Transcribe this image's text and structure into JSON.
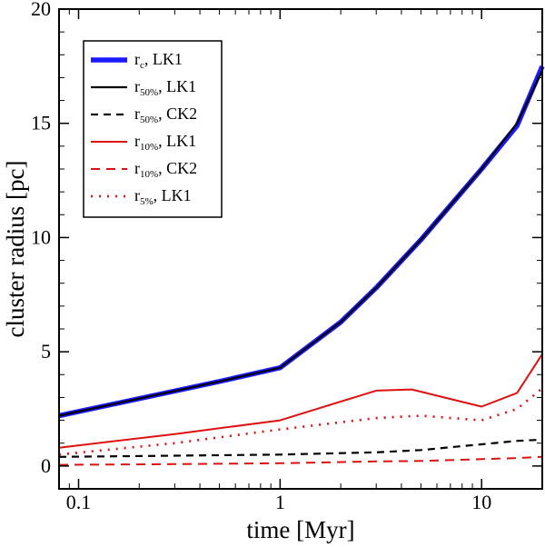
{
  "chart_data": {
    "type": "line",
    "xlabel": "time [Myr]",
    "ylabel": "cluster radius [pc]",
    "xscale": "log",
    "xlim": [
      0.08,
      20
    ],
    "ylim": [
      -1,
      20
    ],
    "xticks": [
      {
        "value": 0.1,
        "label": "0.1"
      },
      {
        "value": 1,
        "label": "1"
      },
      {
        "value": 10,
        "label": "10"
      }
    ],
    "yticks": [
      {
        "value": 0,
        "label": "0"
      },
      {
        "value": 5,
        "label": "5"
      },
      {
        "value": 10,
        "label": "10"
      },
      {
        "value": 15,
        "label": "15"
      },
      {
        "value": 20,
        "label": "20"
      }
    ],
    "legend_position": "top-left",
    "series": [
      {
        "name": "r",
        "sub": "c",
        "suffix": ",    LK1",
        "color": "#1a1aff",
        "width": 5.5,
        "dash": "",
        "x": [
          0.08,
          0.2,
          0.5,
          1.0,
          2.0,
          3.0,
          5.0,
          8.0,
          10.0,
          15.0,
          20.0
        ],
        "y": [
          2.2,
          2.95,
          3.7,
          4.3,
          6.3,
          7.8,
          9.9,
          12.0,
          13.0,
          14.9,
          17.5
        ]
      },
      {
        "name": "r",
        "sub": "50%",
        "suffix": ", LK1",
        "color": "#000000",
        "width": 2.2,
        "dash": "",
        "x": [
          0.08,
          0.2,
          0.5,
          1.0,
          2.0,
          3.0,
          5.0,
          8.0,
          10.0,
          15.0,
          20.0
        ],
        "y": [
          2.2,
          2.95,
          3.7,
          4.3,
          6.3,
          7.8,
          9.9,
          12.0,
          13.0,
          15.0,
          17.3
        ]
      },
      {
        "name": "r",
        "sub": "50%",
        "suffix": ", CK2",
        "color": "#000000",
        "width": 2.2,
        "dash": "8,6",
        "x": [
          0.08,
          0.3,
          1.0,
          3.0,
          5.0,
          10.0,
          15.0,
          20.0
        ],
        "y": [
          0.4,
          0.45,
          0.5,
          0.6,
          0.7,
          0.95,
          1.1,
          1.15
        ]
      },
      {
        "name": "r",
        "sub": "10%",
        "suffix": ", LK1",
        "color": "#dd1111",
        "width": 2.0,
        "dash": "",
        "x": [
          0.08,
          0.3,
          1.0,
          3.0,
          4.5,
          10.0,
          15.0,
          20.0
        ],
        "y": [
          0.8,
          1.4,
          2.0,
          3.3,
          3.35,
          2.6,
          3.2,
          4.9
        ]
      },
      {
        "name": "r",
        "sub": "10%",
        "suffix": ", CK2",
        "color": "#dd1111",
        "width": 2.0,
        "dash": "10,7",
        "x": [
          0.08,
          0.3,
          1.0,
          3.0,
          5.0,
          10.0,
          15.0,
          20.0
        ],
        "y": [
          0.05,
          0.08,
          0.12,
          0.2,
          0.22,
          0.3,
          0.35,
          0.4
        ]
      },
      {
        "name": "r",
        "sub": "5%",
        "suffix": ",    LK1",
        "color": "#dd1111",
        "width": 2.6,
        "dash": "2,7",
        "x": [
          0.08,
          0.3,
          1.0,
          3.0,
          5.0,
          10.0,
          15.0,
          20.0
        ],
        "y": [
          0.5,
          1.0,
          1.6,
          2.1,
          2.2,
          2.0,
          2.5,
          3.4
        ]
      }
    ]
  }
}
